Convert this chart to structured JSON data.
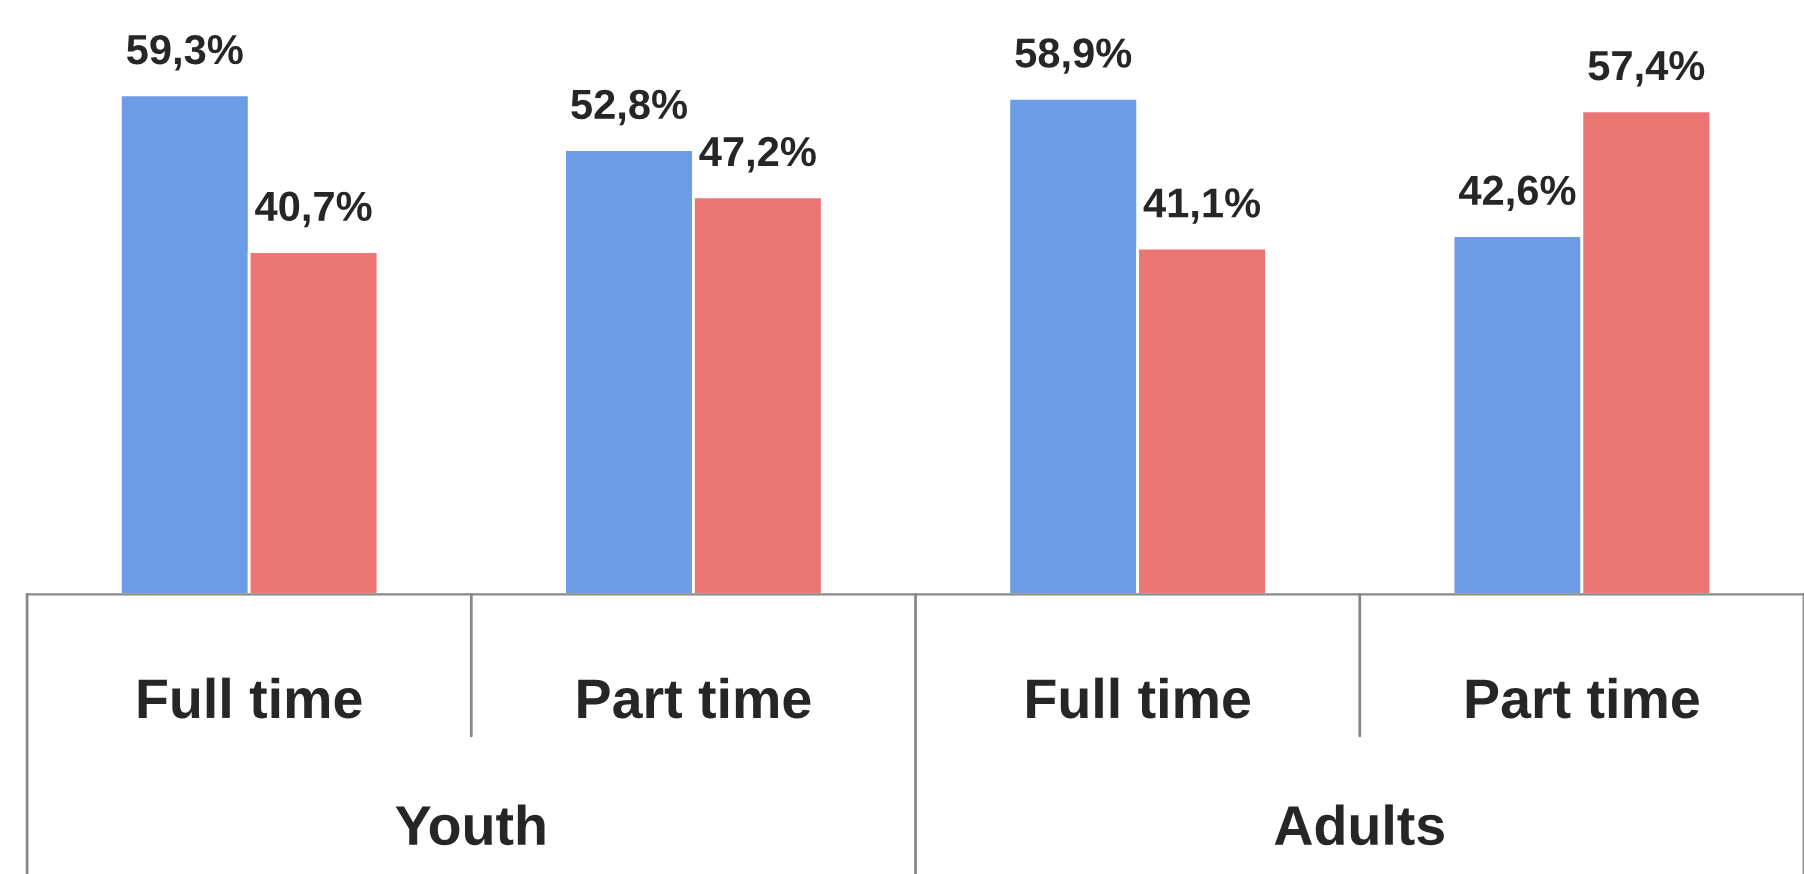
{
  "chart_data": {
    "type": "bar",
    "categories": [
      "Full time",
      "Part time",
      "Full time",
      "Part time"
    ],
    "series": [
      {
        "color": "#6d9ce6",
        "values": [
          59.3,
          52.8,
          58.9,
          42.6
        ],
        "value_labels": [
          "59,3%",
          "52,8%",
          "58,9%",
          "42,6%"
        ]
      },
      {
        "color": "#ea7573",
        "values": [
          40.7,
          47.2,
          41.1,
          57.4
        ],
        "value_labels": [
          "40,7%",
          "47,2%",
          "41,1%",
          "57,4%"
        ]
      }
    ],
    "annotations": [
      "Youth",
      "Adults"
    ]
  }
}
